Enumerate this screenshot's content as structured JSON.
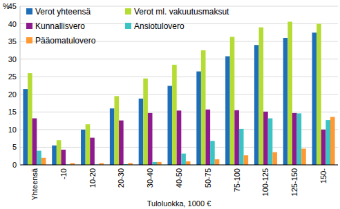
{
  "chart_data": {
    "type": "bar",
    "x_label": "Tuloluokka, 1000 €",
    "y_label": "%",
    "categories": [
      "Yhteensä",
      "-10",
      "10-20",
      "20-30",
      "30-40",
      "40-50",
      "50-75",
      "75-100",
      "100-125",
      "125-150",
      "150-"
    ],
    "series": [
      {
        "name": "Verot yhteensä",
        "color": "#1f6fb8",
        "values": [
          21.5,
          5.5,
          10,
          16,
          18.8,
          22.4,
          26.5,
          30.8,
          34,
          36,
          37.5
        ]
      },
      {
        "name": "Verot ml. vakuutusmaksut",
        "color": "#b5dc34",
        "values": [
          26,
          7,
          11.5,
          19.5,
          24.5,
          28.4,
          32.5,
          36.3,
          39,
          40.6,
          40
        ]
      },
      {
        "name": "Kunnallisvero",
        "color": "#8e1a8e",
        "values": [
          13.2,
          4.3,
          7.7,
          12.6,
          14.7,
          15.4,
          15.7,
          15.5,
          15.1,
          14.7,
          10
        ]
      },
      {
        "name": "Ansiotulovero",
        "color": "#3cc4c4",
        "values": [
          4,
          0.1,
          0.1,
          0.2,
          0.8,
          3.2,
          6.8,
          10.2,
          13.2,
          14.6,
          12.7
        ]
      },
      {
        "name": "Pääomatulovero",
        "color": "#ff9933",
        "values": [
          2,
          0.5,
          0.5,
          0.5,
          0.8,
          1,
          1.6,
          2.7,
          3.6,
          4.6,
          13.6
        ]
      }
    ],
    "ylim": [
      0,
      45
    ],
    "yticks": [
      0,
      5,
      10,
      15,
      20,
      25,
      30,
      35,
      40,
      45
    ],
    "grid": true,
    "legend": "top-left"
  }
}
